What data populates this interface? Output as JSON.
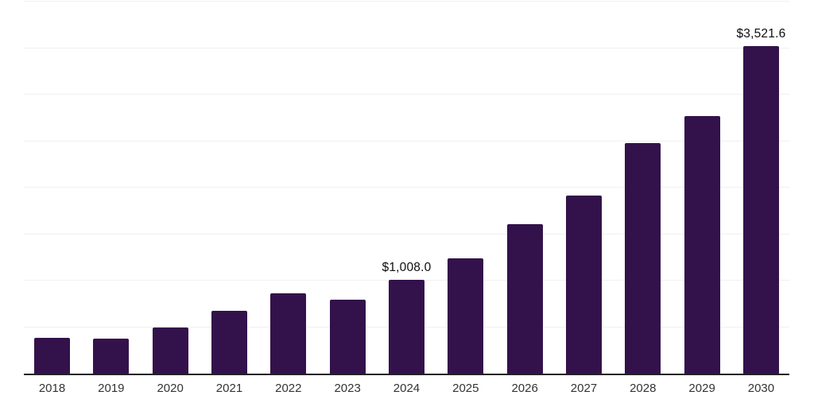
{
  "chart_data": {
    "type": "bar",
    "title": "",
    "xlabel": "",
    "ylabel": "",
    "categories": [
      "2018",
      "2019",
      "2020",
      "2021",
      "2022",
      "2023",
      "2024",
      "2025",
      "2026",
      "2027",
      "2028",
      "2029",
      "2030"
    ],
    "values": [
      385,
      376,
      497,
      678,
      860,
      797,
      1008.0,
      1239,
      1610,
      1915,
      2480,
      2772,
      3521.6
    ],
    "point_labels": [
      "",
      "",
      "",
      "",
      "",
      "",
      "$1,008.0",
      "",
      "",
      "",
      "",
      "",
      "$3,521.6"
    ],
    "ylim": [
      0,
      4000
    ],
    "y_gridline_step": 500,
    "grid": "horizontal-light",
    "legend": "none",
    "bar_color": "#33124b",
    "axis_line_color": "#222222",
    "gridline_color": "#f0f0f0",
    "label_color": "#0d0d0d",
    "tick_label_color": "#333333"
  }
}
